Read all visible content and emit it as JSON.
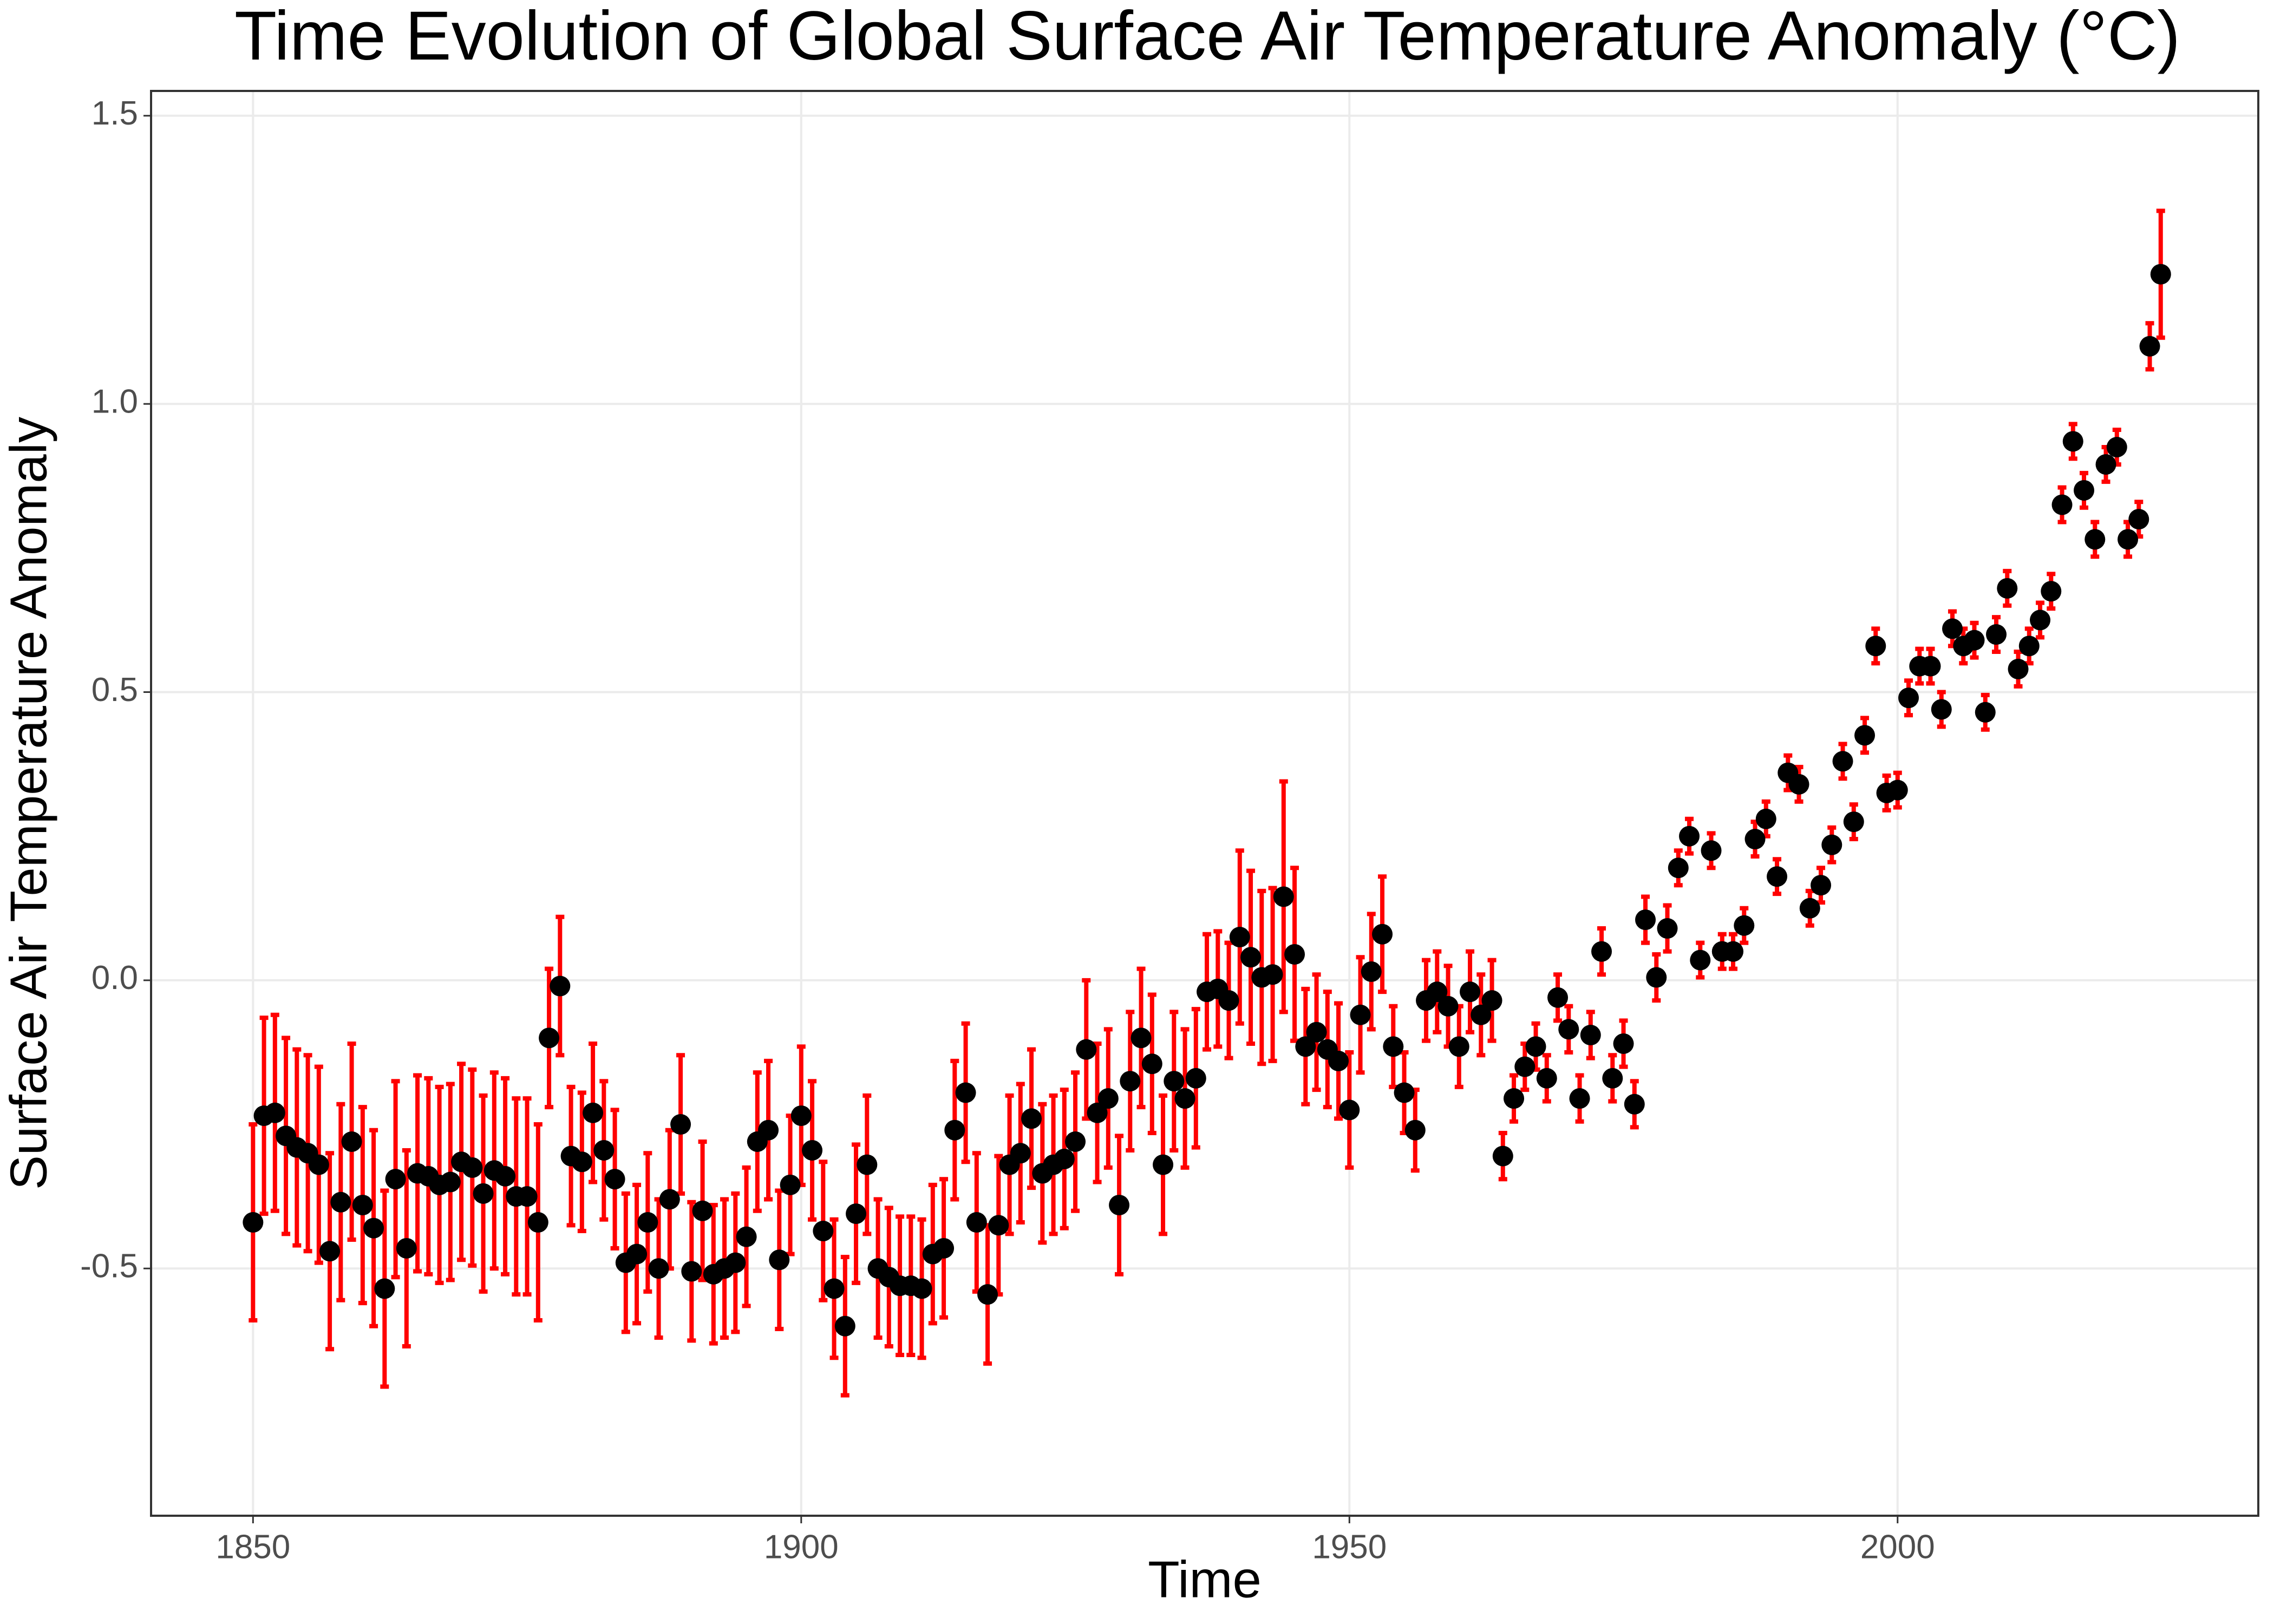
{
  "chart_data": {
    "type": "scatter",
    "title": "Time Evolution of Global Surface Air Temperature Anomaly (°C)",
    "x_label": "Time",
    "y_label": "Surface Air Temperature Anomaly",
    "x": [
      1850,
      1851,
      1852,
      1853,
      1854,
      1855,
      1856,
      1857,
      1858,
      1859,
      1860,
      1861,
      1862,
      1863,
      1864,
      1865,
      1866,
      1867,
      1868,
      1869,
      1870,
      1871,
      1872,
      1873,
      1874,
      1875,
      1876,
      1877,
      1878,
      1879,
      1880,
      1881,
      1882,
      1883,
      1884,
      1885,
      1886,
      1887,
      1888,
      1889,
      1890,
      1891,
      1892,
      1893,
      1894,
      1895,
      1896,
      1897,
      1898,
      1899,
      1900,
      1901,
      1902,
      1903,
      1904,
      1905,
      1906,
      1907,
      1908,
      1909,
      1910,
      1911,
      1912,
      1913,
      1914,
      1915,
      1916,
      1917,
      1918,
      1919,
      1920,
      1921,
      1922,
      1923,
      1924,
      1925,
      1926,
      1927,
      1928,
      1929,
      1930,
      1931,
      1932,
      1933,
      1934,
      1935,
      1936,
      1937,
      1938,
      1939,
      1940,
      1941,
      1942,
      1943,
      1944,
      1945,
      1946,
      1947,
      1948,
      1949,
      1950,
      1951,
      1952,
      1953,
      1954,
      1955,
      1956,
      1957,
      1958,
      1959,
      1960,
      1961,
      1962,
      1963,
      1964,
      1965,
      1966,
      1967,
      1968,
      1969,
      1970,
      1971,
      1972,
      1973,
      1974,
      1975,
      1976,
      1977,
      1978,
      1979,
      1980,
      1981,
      1982,
      1983,
      1984,
      1985,
      1986,
      1987,
      1988,
      1989,
      1990,
      1991,
      1992,
      1993,
      1994,
      1995,
      1996,
      1997,
      1998,
      1999,
      2000,
      2001,
      2002,
      2003,
      2004,
      2005,
      2006,
      2007,
      2008,
      2009,
      2010,
      2011,
      2012,
      2013,
      2014,
      2015,
      2016,
      2017,
      2018,
      2019,
      2020,
      2021,
      2022,
      2023,
      2024
    ],
    "values": [
      -0.42,
      -0.235,
      -0.23,
      -0.27,
      -0.29,
      -0.3,
      -0.32,
      -0.47,
      -0.385,
      -0.28,
      -0.39,
      -0.43,
      -0.535,
      -0.345,
      -0.465,
      -0.335,
      -0.34,
      -0.355,
      -0.35,
      -0.315,
      -0.325,
      -0.37,
      -0.33,
      -0.34,
      -0.375,
      -0.375,
      -0.42,
      -0.1,
      -0.01,
      -0.305,
      -0.315,
      -0.23,
      -0.295,
      -0.345,
      -0.49,
      -0.475,
      -0.42,
      -0.5,
      -0.38,
      -0.25,
      -0.505,
      -0.4,
      -0.51,
      -0.5,
      -0.49,
      -0.445,
      -0.28,
      -0.26,
      -0.485,
      -0.355,
      -0.235,
      -0.295,
      -0.435,
      -0.535,
      -0.6,
      -0.405,
      -0.32,
      -0.5,
      -0.515,
      -0.53,
      -0.53,
      -0.535,
      -0.475,
      -0.465,
      -0.26,
      -0.195,
      -0.42,
      -0.545,
      -0.425,
      -0.32,
      -0.3,
      -0.24,
      -0.335,
      -0.32,
      -0.31,
      -0.28,
      -0.12,
      -0.23,
      -0.205,
      -0.39,
      -0.175,
      -0.1,
      -0.145,
      -0.32,
      -0.175,
      -0.205,
      -0.17,
      -0.02,
      -0.015,
      -0.035,
      0.075,
      0.04,
      0.005,
      0.01,
      0.145,
      0.045,
      -0.115,
      -0.09,
      -0.12,
      -0.14,
      -0.225,
      -0.06,
      0.015,
      0.08,
      -0.115,
      -0.195,
      -0.26,
      -0.035,
      -0.02,
      -0.045,
      -0.115,
      -0.02,
      -0.06,
      -0.035,
      -0.305,
      -0.205,
      -0.15,
      -0.115,
      -0.17,
      -0.03,
      -0.085,
      -0.205,
      -0.095,
      0.05,
      -0.17,
      -0.11,
      -0.215,
      0.105,
      0.005,
      0.09,
      0.195,
      0.25,
      0.035,
      0.225,
      0.05,
      0.05,
      0.095,
      0.245,
      0.28,
      0.18,
      0.36,
      0.34,
      0.125,
      0.165,
      0.235,
      0.38,
      0.275,
      0.425,
      0.58,
      0.325,
      0.33,
      0.49,
      0.545,
      0.545,
      0.47,
      0.61,
      0.58,
      0.59,
      0.465,
      0.6,
      0.68,
      0.54,
      0.58,
      0.625,
      0.675,
      0.825,
      0.935,
      0.85,
      0.765,
      0.895,
      0.925,
      0.765,
      0.8,
      1.1,
      1.225
    ],
    "errors": [
      0.17,
      0.17,
      0.17,
      0.17,
      0.17,
      0.17,
      0.17,
      0.17,
      0.17,
      0.17,
      0.17,
      0.17,
      0.17,
      0.17,
      0.17,
      0.17,
      0.17,
      0.17,
      0.17,
      0.17,
      0.17,
      0.17,
      0.17,
      0.17,
      0.17,
      0.17,
      0.17,
      0.12,
      0.12,
      0.12,
      0.12,
      0.12,
      0.12,
      0.12,
      0.12,
      0.12,
      0.12,
      0.12,
      0.12,
      0.12,
      0.12,
      0.12,
      0.12,
      0.12,
      0.12,
      0.12,
      0.12,
      0.12,
      0.12,
      0.12,
      0.12,
      0.12,
      0.12,
      0.12,
      0.12,
      0.12,
      0.12,
      0.12,
      0.12,
      0.12,
      0.12,
      0.12,
      0.12,
      0.12,
      0.12,
      0.12,
      0.12,
      0.12,
      0.12,
      0.12,
      0.12,
      0.12,
      0.12,
      0.12,
      0.12,
      0.12,
      0.12,
      0.12,
      0.12,
      0.12,
      0.12,
      0.12,
      0.12,
      0.12,
      0.12,
      0.12,
      0.12,
      0.1,
      0.1,
      0.1,
      0.15,
      0.15,
      0.15,
      0.15,
      0.2,
      0.15,
      0.1,
      0.1,
      0.1,
      0.1,
      0.1,
      0.1,
      0.1,
      0.1,
      0.07,
      0.07,
      0.07,
      0.07,
      0.07,
      0.07,
      0.07,
      0.07,
      0.07,
      0.07,
      0.04,
      0.04,
      0.04,
      0.04,
      0.04,
      0.04,
      0.04,
      0.04,
      0.04,
      0.04,
      0.04,
      0.04,
      0.04,
      0.04,
      0.04,
      0.04,
      0.03,
      0.03,
      0.03,
      0.03,
      0.03,
      0.03,
      0.03,
      0.03,
      0.03,
      0.03,
      0.03,
      0.03,
      0.03,
      0.03,
      0.03,
      0.03,
      0.03,
      0.03,
      0.03,
      0.03,
      0.03,
      0.03,
      0.03,
      0.03,
      0.03,
      0.03,
      0.03,
      0.03,
      0.03,
      0.03,
      0.03,
      0.03,
      0.03,
      0.03,
      0.03,
      0.03,
      0.03,
      0.03,
      0.03,
      0.03,
      0.03,
      0.03,
      0.03,
      0.04,
      0.11
    ],
    "color": "#000000",
    "error_color": "#ff0000",
    "xlim": [
      1840.7,
      2032.9
    ],
    "ylim": [
      -0.929,
      1.543
    ],
    "xticks": [
      1850,
      1900,
      1950,
      2000
    ],
    "yticks": [
      -0.5,
      {
        "value": 0,
        "label": "0.0"
      },
      0.5,
      {
        "value": 1,
        "label": "1.0"
      },
      1.5
    ],
    "grid": true
  }
}
